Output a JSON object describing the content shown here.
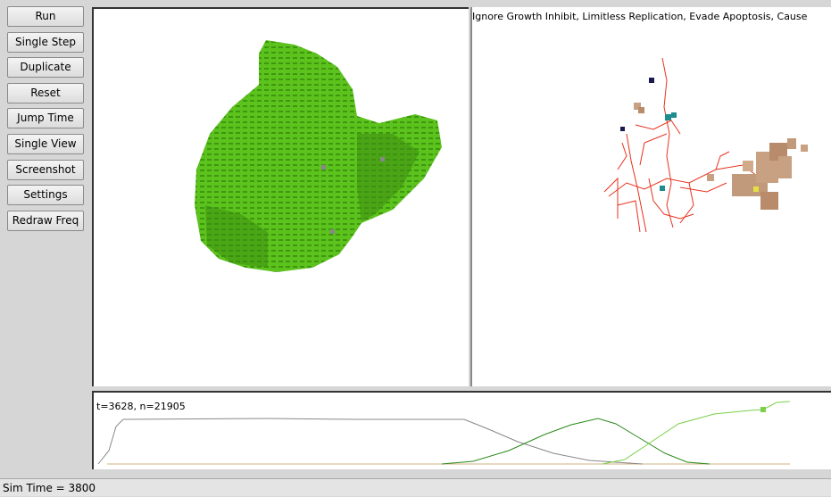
{
  "buttons": [
    "Run",
    "Single Step",
    "Duplicate",
    "Reset",
    "Jump Time",
    "Single View",
    "Screenshot",
    "Settings",
    "Redraw Freq"
  ],
  "right_view": {
    "caption": "Ignore Growth Inhibit, Limitless Replication, Evade Apoptosis, Cause"
  },
  "plot": {
    "caption": "t=3628, n=21905"
  },
  "status": "Sim Time = 3800"
}
